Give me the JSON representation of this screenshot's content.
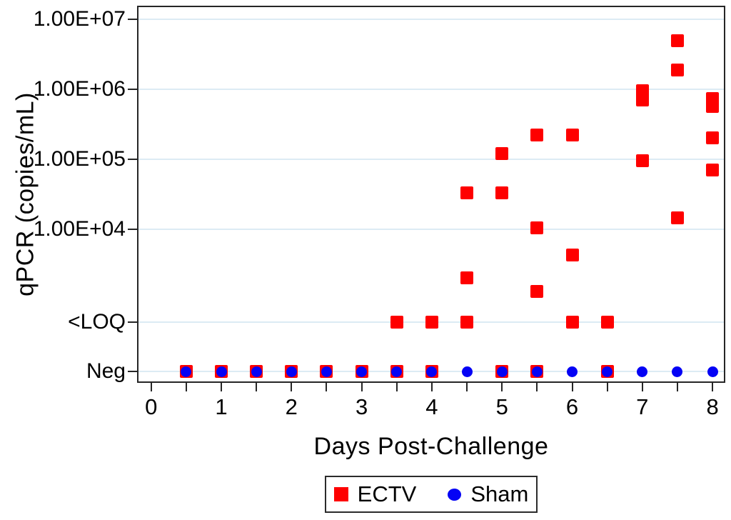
{
  "colors": {
    "ectv": "#fe0000",
    "sham": "#0402f5",
    "grid": "#dcebf4",
    "axis": "#262626",
    "text": "#000000"
  },
  "chart_data": {
    "type": "scatter",
    "title": "",
    "xlabel": "Days Post-Challenge",
    "ylabel": "qPCR (copies/mL)",
    "grid": "horizontal-only",
    "legend_position": "bottom-center-boxed",
    "x_axis": {
      "ticks": [
        0,
        1,
        2,
        3,
        4,
        5,
        6,
        7,
        8
      ],
      "minor_tick_step": 0.5,
      "range": [
        -0.19,
        8.17
      ]
    },
    "y_axis": {
      "scale": "log10 above categorical floor rows",
      "range_numeric": [
        10000,
        15000000
      ],
      "ticks": [
        {
          "label": "1.00E+07",
          "value": 10000000
        },
        {
          "label": "1.00E+06",
          "value": 1000000
        },
        {
          "label": "1.00E+05",
          "value": 100000
        },
        {
          "label": "1.00E+04",
          "value": 10000
        },
        {
          "label": "<LOQ",
          "value": "<LOQ"
        },
        {
          "label": "Neg",
          "value": "Neg"
        }
      ]
    },
    "point_format": [
      "day",
      "value"
    ],
    "series": [
      {
        "name": "ECTV",
        "marker": "square",
        "color_key": "ectv",
        "points": [
          [
            0.5,
            "Neg"
          ],
          [
            1,
            "Neg"
          ],
          [
            1.5,
            "Neg"
          ],
          [
            2,
            "Neg"
          ],
          [
            2.5,
            "Neg"
          ],
          [
            3,
            "Neg"
          ],
          [
            3.5,
            "Neg"
          ],
          [
            3.5,
            "<LOQ"
          ],
          [
            4,
            "Neg"
          ],
          [
            4,
            "<LOQ"
          ],
          [
            4.5,
            "<LOQ"
          ],
          [
            4.5,
            2000
          ],
          [
            4.5,
            33000
          ],
          [
            5,
            "Neg"
          ],
          [
            5,
            33000
          ],
          [
            5,
            120000
          ],
          [
            5.5,
            "Neg"
          ],
          [
            5.5,
            1300
          ],
          [
            5.5,
            10500
          ],
          [
            5.5,
            220000
          ],
          [
            6,
            "<LOQ"
          ],
          [
            6,
            4300
          ],
          [
            6,
            220000
          ],
          [
            6.5,
            "Neg"
          ],
          [
            6.5,
            "<LOQ"
          ],
          [
            7,
            95000
          ],
          [
            7,
            700000
          ],
          [
            7,
            950000
          ],
          [
            7.5,
            14500
          ],
          [
            7.5,
            1900000
          ],
          [
            7.5,
            5000000
          ],
          [
            8,
            70000
          ],
          [
            8,
            200000
          ],
          [
            8,
            570000
          ],
          [
            8,
            730000
          ]
        ]
      },
      {
        "name": "Sham",
        "marker": "circle",
        "color_key": "sham",
        "points": [
          [
            0.5,
            "Neg"
          ],
          [
            1,
            "Neg"
          ],
          [
            1.5,
            "Neg"
          ],
          [
            2,
            "Neg"
          ],
          [
            2.5,
            "Neg"
          ],
          [
            3,
            "Neg"
          ],
          [
            3.5,
            "Neg"
          ],
          [
            4,
            "Neg"
          ],
          [
            4.5,
            "Neg"
          ],
          [
            5,
            "Neg"
          ],
          [
            5.5,
            "Neg"
          ],
          [
            6,
            "Neg"
          ],
          [
            6.5,
            "Neg"
          ],
          [
            7,
            "Neg"
          ],
          [
            7.5,
            "Neg"
          ],
          [
            8,
            "Neg"
          ]
        ]
      }
    ]
  }
}
